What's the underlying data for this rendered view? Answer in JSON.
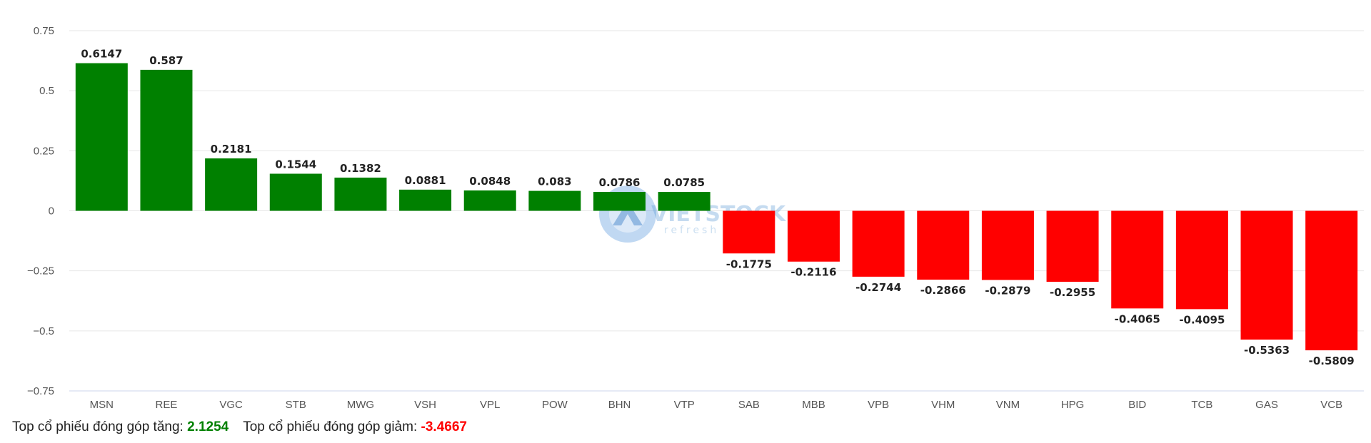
{
  "chart_data": {
    "type": "bar",
    "title": "",
    "xlabel": "",
    "ylabel": "",
    "categories": [
      "MSN",
      "REE",
      "VGC",
      "STB",
      "MWG",
      "VSH",
      "VPL",
      "POW",
      "BHN",
      "VTP",
      "SAB",
      "MBB",
      "VPB",
      "VHM",
      "VNM",
      "HPG",
      "BID",
      "TCB",
      "GAS",
      "VCB"
    ],
    "values": [
      0.6147,
      0.587,
      0.2181,
      0.1544,
      0.1382,
      0.0881,
      0.0848,
      0.083,
      0.0786,
      0.0785,
      -0.1775,
      -0.2116,
      -0.2744,
      -0.2866,
      -0.2879,
      -0.2955,
      -0.4065,
      -0.4095,
      -0.5363,
      -0.5809
    ],
    "data_labels": [
      "0.6147",
      "0.587",
      "0.2181",
      "0.1544",
      "0.1382",
      "0.0881",
      "0.0848",
      "0.083",
      "0.0786",
      "0.0785",
      "-0.1775",
      "-0.2116",
      "-0.2744",
      "-0.2866",
      "-0.2879",
      "-0.2955",
      "-0.4065",
      "-0.4095",
      "-0.5363",
      "-0.5809"
    ],
    "ylim": [
      -0.75,
      0.75
    ],
    "yticks": [
      0.75,
      0.5,
      0.25,
      0,
      -0.25,
      -0.5,
      -0.75
    ],
    "ytick_labels": [
      "0.75",
      "0.5",
      "0.25",
      "0",
      "−0.25",
      "−0.5",
      "−0.75"
    ],
    "grid": true,
    "legend": "none",
    "colors": {
      "positive": "#008000",
      "negative": "#ff0000",
      "grid": "#e6e6e6",
      "axis": "#ccd6eb"
    }
  },
  "watermark": {
    "text": "VIETSTOCK",
    "subtext": "refresh"
  },
  "summary": {
    "up_label": "Top cổ phiếu đóng góp tăng: ",
    "up_value": "2.1254",
    "up_color": "#008000",
    "down_label": "Top cổ phiếu đóng góp giảm: ",
    "down_value": "-3.4667",
    "down_color": "#ff0000"
  }
}
